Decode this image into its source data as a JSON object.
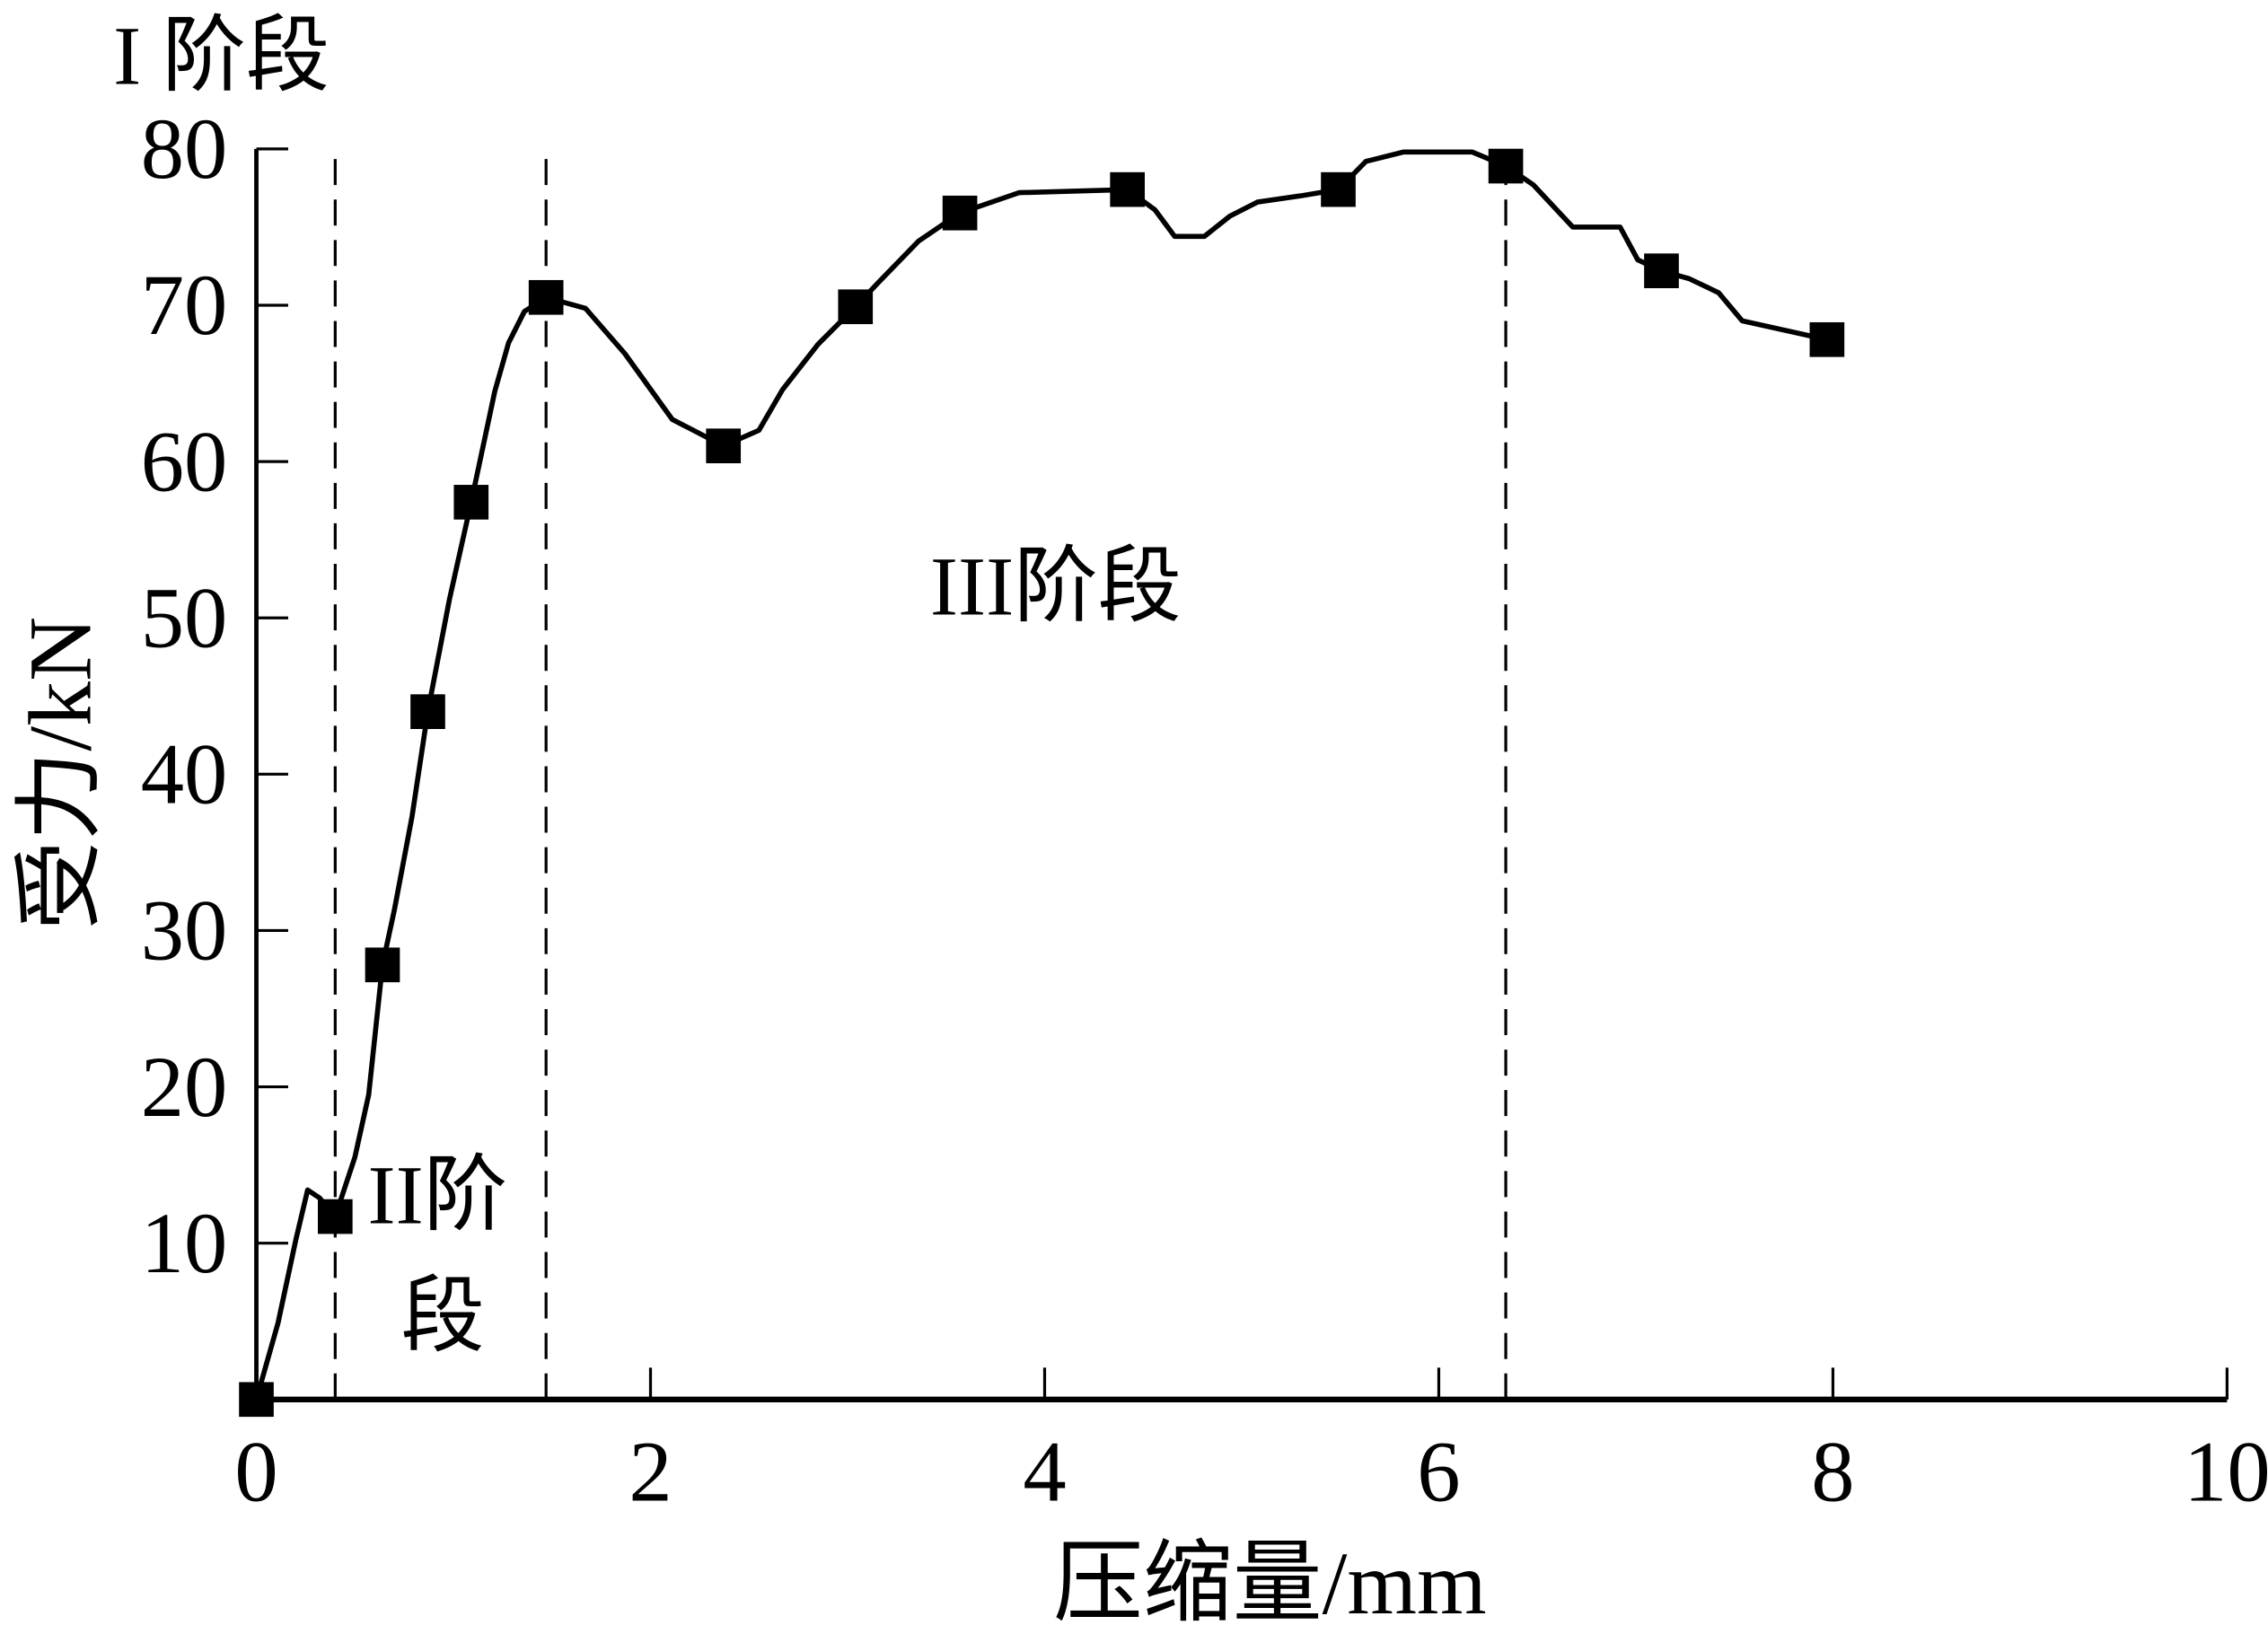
{
  "chart_data": {
    "type": "line",
    "title": "",
    "xlabel": "压缩量/mm",
    "ylabel": "受力/kN",
    "xlim": [
      0,
      10
    ],
    "ylim": [
      0,
      80
    ],
    "xticks": [
      "0",
      "2",
      "4",
      "6",
      "8",
      "10"
    ],
    "yticks": [
      "10",
      "20",
      "30",
      "40",
      "50",
      "60",
      "70",
      "80"
    ],
    "grid": false,
    "legend": "none",
    "line_color": "#000000",
    "series": [
      {
        "line": {
          "x": [
            0,
            0.11,
            0.2,
            0.26,
            0.32,
            0.4,
            0.5,
            0.57,
            0.64,
            0.7,
            0.79,
            0.87,
            0.98,
            1.09,
            1.21,
            1.28,
            1.36,
            1.47,
            1.67,
            1.87,
            2.11,
            2.37,
            2.55,
            2.67,
            2.85,
            3.04,
            3.16,
            3.36,
            3.57,
            3.87,
            4.42,
            4.56,
            4.66,
            4.81,
            4.94,
            5.08,
            5.3,
            5.49,
            5.63,
            5.82,
            6.17,
            6.34,
            6.48,
            6.68,
            6.92,
            7.01,
            7.13,
            7.27,
            7.42,
            7.54,
            7.97
          ],
          "y": [
            0,
            4.9,
            10.2,
            13.4,
            12.9,
            11.7,
            15.5,
            19.5,
            27.8,
            31.3,
            37.3,
            44.0,
            51.2,
            57.4,
            64.5,
            67.6,
            69.6,
            70.5,
            69.8,
            66.9,
            62.7,
            61.0,
            62.0,
            64.6,
            67.5,
            69.9,
            71.5,
            74.1,
            75.9,
            77.2,
            77.4,
            76.1,
            74.4,
            74.4,
            75.7,
            76.6,
            77.0,
            77.4,
            79.2,
            79.8,
            79.8,
            78.9,
            77.7,
            75.0,
            75.0,
            72.9,
            72.2,
            71.7,
            70.8,
            69.0,
            67.8
          ]
        },
        "markers": {
          "shape": "square",
          "x": [
            0,
            0.4,
            0.64,
            0.87,
            1.09,
            1.47,
            2.37,
            3.04,
            3.57,
            4.42,
            5.49,
            6.34,
            7.13,
            7.97
          ],
          "y": [
            0,
            11.7,
            27.8,
            44.0,
            57.4,
            70.5,
            61.0,
            69.9,
            75.9,
            77.4,
            77.4,
            78.9,
            72.2,
            67.8
          ]
        }
      }
    ],
    "stage_boundaries_x": [
      0.4,
      1.47,
      6.34
    ],
    "annotations": {
      "stage1": "I 阶段",
      "stage2_line1": "II阶",
      "stage2_line2": "段",
      "stage3": "III阶段"
    }
  }
}
